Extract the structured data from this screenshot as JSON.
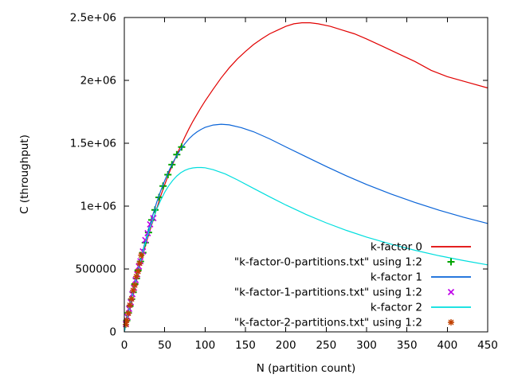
{
  "chart_data": {
    "type": "line",
    "title": "",
    "xlabel": "N (partition count)",
    "ylabel": "C (throughput)",
    "xlim": [
      0,
      450
    ],
    "ylim": [
      0,
      2500000
    ],
    "grid": false,
    "legend_position": "inside bottom-right",
    "x_ticks": [
      {
        "v": 0,
        "label": "0"
      },
      {
        "v": 50,
        "label": "50"
      },
      {
        "v": 100,
        "label": "100"
      },
      {
        "v": 150,
        "label": "150"
      },
      {
        "v": 200,
        "label": "200"
      },
      {
        "v": 250,
        "label": "250"
      },
      {
        "v": 300,
        "label": "300"
      },
      {
        "v": 350,
        "label": "350"
      },
      {
        "v": 400,
        "label": "400"
      },
      {
        "v": 450,
        "label": "450"
      }
    ],
    "y_ticks": [
      {
        "v": 0,
        "label": "0"
      },
      {
        "v": 500000,
        "label": "500000"
      },
      {
        "v": 1000000,
        "label": "1e+06"
      },
      {
        "v": 1500000,
        "label": "1.5e+06"
      },
      {
        "v": 2000000,
        "label": "2e+06"
      },
      {
        "v": 2500000,
        "label": "2.5e+06"
      }
    ],
    "series": [
      {
        "name": "k-factor 0",
        "kind": "line",
        "color": "#e10000",
        "points": [
          [
            0,
            0
          ],
          [
            5,
            150000
          ],
          [
            10,
            290000
          ],
          [
            15,
            420000
          ],
          [
            20,
            545000
          ],
          [
            25,
            660000
          ],
          [
            30,
            770000
          ],
          [
            35,
            875000
          ],
          [
            40,
            975000
          ],
          [
            45,
            1080000
          ],
          [
            50,
            1170000
          ],
          [
            55,
            1255000
          ],
          [
            60,
            1335000
          ],
          [
            65,
            1410000
          ],
          [
            70,
            1480000
          ],
          [
            75,
            1550000
          ],
          [
            80,
            1615000
          ],
          [
            85,
            1675000
          ],
          [
            90,
            1730000
          ],
          [
            95,
            1785000
          ],
          [
            100,
            1835000
          ],
          [
            110,
            1930000
          ],
          [
            120,
            2020000
          ],
          [
            130,
            2100000
          ],
          [
            140,
            2170000
          ],
          [
            150,
            2230000
          ],
          [
            160,
            2285000
          ],
          [
            170,
            2330000
          ],
          [
            180,
            2370000
          ],
          [
            190,
            2400000
          ],
          [
            200,
            2430000
          ],
          [
            210,
            2450000
          ],
          [
            220,
            2458000
          ],
          [
            230,
            2458000
          ],
          [
            240,
            2450000
          ],
          [
            255,
            2430000
          ],
          [
            270,
            2400000
          ],
          [
            285,
            2370000
          ],
          [
            300,
            2330000
          ],
          [
            320,
            2270000
          ],
          [
            340,
            2210000
          ],
          [
            360,
            2150000
          ],
          [
            380,
            2080000
          ],
          [
            400,
            2030000
          ],
          [
            425,
            1985000
          ],
          [
            450,
            1940000
          ]
        ]
      },
      {
        "name": "\"k-factor-0-partitions.txt\" using 1:2",
        "kind": "scatter",
        "marker": "plus",
        "color": "#00a400",
        "points": [
          [
            3,
            90000
          ],
          [
            5,
            150000
          ],
          [
            7,
            205000
          ],
          [
            9,
            260000
          ],
          [
            11,
            315000
          ],
          [
            13,
            380000
          ],
          [
            15,
            425000
          ],
          [
            17,
            490000
          ],
          [
            20,
            560000
          ],
          [
            23,
            630000
          ],
          [
            26,
            710000
          ],
          [
            30,
            790000
          ],
          [
            34,
            890000
          ],
          [
            38,
            970000
          ],
          [
            43,
            1070000
          ],
          [
            48,
            1160000
          ],
          [
            54,
            1250000
          ],
          [
            59,
            1330000
          ],
          [
            65,
            1410000
          ],
          [
            71,
            1470000
          ]
        ]
      },
      {
        "name": "k-factor 1",
        "kind": "line",
        "color": "#0a64d8",
        "points": [
          [
            0,
            0
          ],
          [
            5,
            150000
          ],
          [
            10,
            296000
          ],
          [
            15,
            435000
          ],
          [
            20,
            570000
          ],
          [
            25,
            695000
          ],
          [
            30,
            817000
          ],
          [
            35,
            925000
          ],
          [
            40,
            1028000
          ],
          [
            45,
            1120000
          ],
          [
            50,
            1204000
          ],
          [
            55,
            1277000
          ],
          [
            60,
            1345000
          ],
          [
            65,
            1403000
          ],
          [
            70,
            1454000
          ],
          [
            75,
            1497000
          ],
          [
            80,
            1535000
          ],
          [
            85,
            1565000
          ],
          [
            90,
            1590000
          ],
          [
            95,
            1610000
          ],
          [
            100,
            1626000
          ],
          [
            110,
            1645000
          ],
          [
            120,
            1651000
          ],
          [
            130,
            1646000
          ],
          [
            145,
            1624000
          ],
          [
            160,
            1592000
          ],
          [
            180,
            1535000
          ],
          [
            200,
            1471000
          ],
          [
            225,
            1393000
          ],
          [
            250,
            1315000
          ],
          [
            275,
            1241000
          ],
          [
            300,
            1172000
          ],
          [
            330,
            1097000
          ],
          [
            360,
            1029000
          ],
          [
            390,
            967000
          ],
          [
            420,
            912000
          ],
          [
            450,
            862000
          ]
        ]
      },
      {
        "name": "\"k-factor-1-partitions.txt\" using 1:2",
        "kind": "scatter",
        "marker": "cross",
        "color": "#bf00e8",
        "points": [
          [
            2,
            62000
          ],
          [
            4,
            118000
          ],
          [
            6,
            183000
          ],
          [
            8,
            235000
          ],
          [
            10,
            300000
          ],
          [
            12,
            350000
          ],
          [
            14,
            412000
          ],
          [
            16,
            458000
          ],
          [
            18,
            520000
          ],
          [
            20,
            562000
          ],
          [
            23,
            640000
          ],
          [
            26,
            730000
          ],
          [
            29,
            785000
          ],
          [
            32,
            855000
          ],
          [
            36,
            905000
          ]
        ]
      },
      {
        "name": "k-factor 2",
        "kind": "line",
        "color": "#00dede",
        "points": [
          [
            0,
            0
          ],
          [
            5,
            149000
          ],
          [
            10,
            295000
          ],
          [
            15,
            432000
          ],
          [
            20,
            563000
          ],
          [
            25,
            681000
          ],
          [
            30,
            792000
          ],
          [
            35,
            887000
          ],
          [
            40,
            973000
          ],
          [
            45,
            1046000
          ],
          [
            50,
            1110000
          ],
          [
            55,
            1162000
          ],
          [
            60,
            1205000
          ],
          [
            65,
            1240000
          ],
          [
            70,
            1266000
          ],
          [
            75,
            1284000
          ],
          [
            80,
            1297000
          ],
          [
            85,
            1304000
          ],
          [
            90,
            1307000
          ],
          [
            95,
            1307000
          ],
          [
            100,
            1305000
          ],
          [
            110,
            1290000
          ],
          [
            125,
            1256000
          ],
          [
            140,
            1209000
          ],
          [
            160,
            1141000
          ],
          [
            180,
            1074000
          ],
          [
            200,
            1009000
          ],
          [
            225,
            934000
          ],
          [
            250,
            867000
          ],
          [
            275,
            807000
          ],
          [
            300,
            754000
          ],
          [
            330,
            698000
          ],
          [
            360,
            649000
          ],
          [
            390,
            605000
          ],
          [
            420,
            567000
          ],
          [
            450,
            533000
          ]
        ]
      },
      {
        "name": "\"k-factor-2-partitions.txt\" using 1:2",
        "kind": "scatter",
        "marker": "asterisk",
        "color": "#c04000",
        "points": [
          [
            2,
            58000
          ],
          [
            3,
            92000
          ],
          [
            5,
            148000
          ],
          [
            7,
            212000
          ],
          [
            9,
            262000
          ],
          [
            11,
            330000
          ],
          [
            13,
            372000
          ],
          [
            15,
            440000
          ],
          [
            17,
            480000
          ],
          [
            19,
            545000
          ],
          [
            21,
            610000
          ]
        ]
      }
    ]
  }
}
